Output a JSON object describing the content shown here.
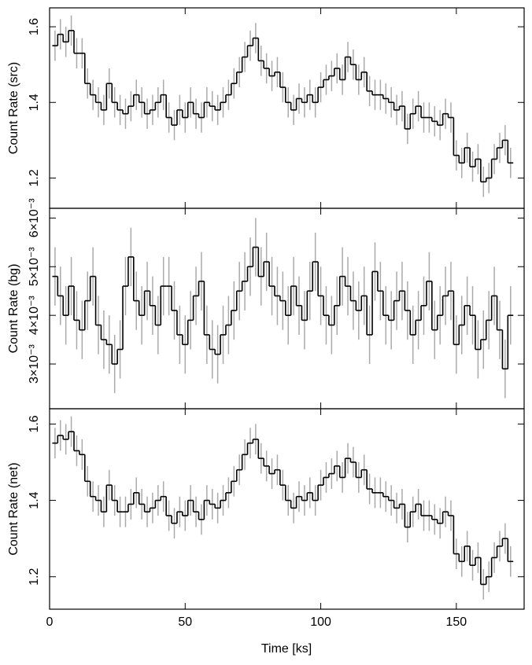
{
  "chart_data": [
    {
      "type": "step",
      "ylabel": "Count Rate (src)",
      "ylim": [
        1.12,
        1.65
      ],
      "yticks": [
        1.2,
        1.4,
        1.6
      ],
      "error": 0.04,
      "x": [
        2,
        4,
        6,
        8,
        10,
        12,
        14,
        16,
        18,
        20,
        22,
        24,
        26,
        28,
        30,
        32,
        34,
        36,
        38,
        40,
        42,
        44,
        46,
        48,
        50,
        52,
        54,
        56,
        58,
        60,
        62,
        64,
        66,
        68,
        70,
        72,
        74,
        76,
        78,
        80,
        82,
        84,
        86,
        88,
        90,
        92,
        94,
        96,
        98,
        100,
        102,
        104,
        106,
        108,
        110,
        112,
        114,
        116,
        118,
        120,
        122,
        124,
        126,
        128,
        130,
        132,
        134,
        136,
        138,
        140,
        142,
        144,
        146,
        148,
        150,
        152,
        154,
        156,
        158,
        160,
        162,
        164,
        166,
        168,
        170
      ],
      "values": [
        1.55,
        1.58,
        1.56,
        1.59,
        1.53,
        1.53,
        1.45,
        1.42,
        1.4,
        1.38,
        1.45,
        1.4,
        1.38,
        1.37,
        1.39,
        1.42,
        1.4,
        1.37,
        1.38,
        1.4,
        1.42,
        1.36,
        1.34,
        1.38,
        1.36,
        1.4,
        1.37,
        1.36,
        1.4,
        1.39,
        1.38,
        1.4,
        1.42,
        1.45,
        1.48,
        1.52,
        1.55,
        1.57,
        1.51,
        1.49,
        1.47,
        1.48,
        1.44,
        1.4,
        1.38,
        1.41,
        1.4,
        1.42,
        1.4,
        1.44,
        1.46,
        1.47,
        1.49,
        1.46,
        1.52,
        1.5,
        1.46,
        1.48,
        1.43,
        1.42,
        1.42,
        1.41,
        1.4,
        1.38,
        1.39,
        1.33,
        1.37,
        1.39,
        1.36,
        1.36,
        1.35,
        1.34,
        1.37,
        1.36,
        1.26,
        1.24,
        1.28,
        1.23,
        1.25,
        1.19,
        1.2,
        1.25,
        1.28,
        1.3,
        1.24
      ]
    },
    {
      "type": "step",
      "ylabel": "Count Rate (bg)",
      "ylim": [
        0.00208,
        0.0062
      ],
      "yticks": [
        {
          "value": 0.003,
          "label": "3×10⁻³"
        },
        {
          "value": 0.004,
          "label": "4×10⁻³"
        },
        {
          "value": 0.005,
          "label": "5×10⁻³"
        },
        {
          "value": 0.006,
          "label": "6×10⁻³"
        }
      ],
      "error": 0.0006,
      "x": [
        2,
        4,
        6,
        8,
        10,
        12,
        14,
        16,
        18,
        20,
        22,
        24,
        26,
        28,
        30,
        32,
        34,
        36,
        38,
        40,
        42,
        44,
        46,
        48,
        50,
        52,
        54,
        56,
        58,
        60,
        62,
        64,
        66,
        68,
        70,
        72,
        74,
        76,
        78,
        80,
        82,
        84,
        86,
        88,
        90,
        92,
        94,
        96,
        98,
        100,
        102,
        104,
        106,
        108,
        110,
        112,
        114,
        116,
        118,
        120,
        122,
        124,
        126,
        128,
        130,
        132,
        134,
        136,
        138,
        140,
        142,
        144,
        146,
        148,
        150,
        152,
        154,
        156,
        158,
        160,
        162,
        164,
        166,
        168,
        170
      ],
      "values": [
        0.0048,
        0.0044,
        0.004,
        0.0046,
        0.0039,
        0.0037,
        0.0043,
        0.0048,
        0.0038,
        0.0035,
        0.0034,
        0.003,
        0.0033,
        0.0046,
        0.0052,
        0.0043,
        0.004,
        0.0045,
        0.0042,
        0.0038,
        0.0046,
        0.0046,
        0.0041,
        0.0036,
        0.0034,
        0.0039,
        0.0044,
        0.0047,
        0.0036,
        0.0033,
        0.0032,
        0.0036,
        0.0038,
        0.0041,
        0.0045,
        0.0047,
        0.005,
        0.0054,
        0.0048,
        0.0051,
        0.0046,
        0.0044,
        0.0043,
        0.004,
        0.0046,
        0.0042,
        0.0039,
        0.0045,
        0.0051,
        0.0044,
        0.004,
        0.0038,
        0.0042,
        0.0048,
        0.0046,
        0.0043,
        0.0041,
        0.0044,
        0.0036,
        0.0049,
        0.0045,
        0.004,
        0.0039,
        0.0043,
        0.0045,
        0.0041,
        0.0036,
        0.0039,
        0.0042,
        0.0047,
        0.0037,
        0.004,
        0.0044,
        0.0045,
        0.0034,
        0.0038,
        0.0042,
        0.004,
        0.0033,
        0.0035,
        0.0039,
        0.0044,
        0.0037,
        0.0029,
        0.004
      ]
    },
    {
      "type": "step",
      "ylabel": "Count Rate (net)",
      "xlabel": "Time [ks]",
      "ylim": [
        1.115,
        1.64
      ],
      "yticks": [
        1.2,
        1.4,
        1.6
      ],
      "xlim": [
        0,
        175
      ],
      "xticks": [
        0,
        50,
        100,
        150
      ],
      "error": 0.04,
      "x": [
        2,
        4,
        6,
        8,
        10,
        12,
        14,
        16,
        18,
        20,
        22,
        24,
        26,
        28,
        30,
        32,
        34,
        36,
        38,
        40,
        42,
        44,
        46,
        48,
        50,
        52,
        54,
        56,
        58,
        60,
        62,
        64,
        66,
        68,
        70,
        72,
        74,
        76,
        78,
        80,
        82,
        84,
        86,
        88,
        90,
        92,
        94,
        96,
        98,
        100,
        102,
        104,
        106,
        108,
        110,
        112,
        114,
        116,
        118,
        120,
        122,
        124,
        126,
        128,
        130,
        132,
        134,
        136,
        138,
        140,
        142,
        144,
        146,
        148,
        150,
        152,
        154,
        156,
        158,
        160,
        162,
        164,
        166,
        168,
        170
      ],
      "values": [
        1.55,
        1.57,
        1.56,
        1.58,
        1.53,
        1.52,
        1.45,
        1.41,
        1.4,
        1.37,
        1.44,
        1.4,
        1.37,
        1.37,
        1.39,
        1.42,
        1.39,
        1.37,
        1.38,
        1.4,
        1.41,
        1.36,
        1.34,
        1.37,
        1.36,
        1.4,
        1.37,
        1.35,
        1.4,
        1.39,
        1.38,
        1.4,
        1.42,
        1.45,
        1.48,
        1.52,
        1.55,
        1.56,
        1.51,
        1.49,
        1.47,
        1.48,
        1.44,
        1.4,
        1.38,
        1.41,
        1.4,
        1.42,
        1.4,
        1.44,
        1.46,
        1.47,
        1.49,
        1.46,
        1.51,
        1.5,
        1.46,
        1.48,
        1.43,
        1.42,
        1.42,
        1.41,
        1.4,
        1.38,
        1.39,
        1.33,
        1.37,
        1.39,
        1.36,
        1.36,
        1.35,
        1.34,
        1.37,
        1.36,
        1.26,
        1.24,
        1.28,
        1.23,
        1.25,
        1.18,
        1.2,
        1.25,
        1.28,
        1.3,
        1.24
      ]
    }
  ]
}
